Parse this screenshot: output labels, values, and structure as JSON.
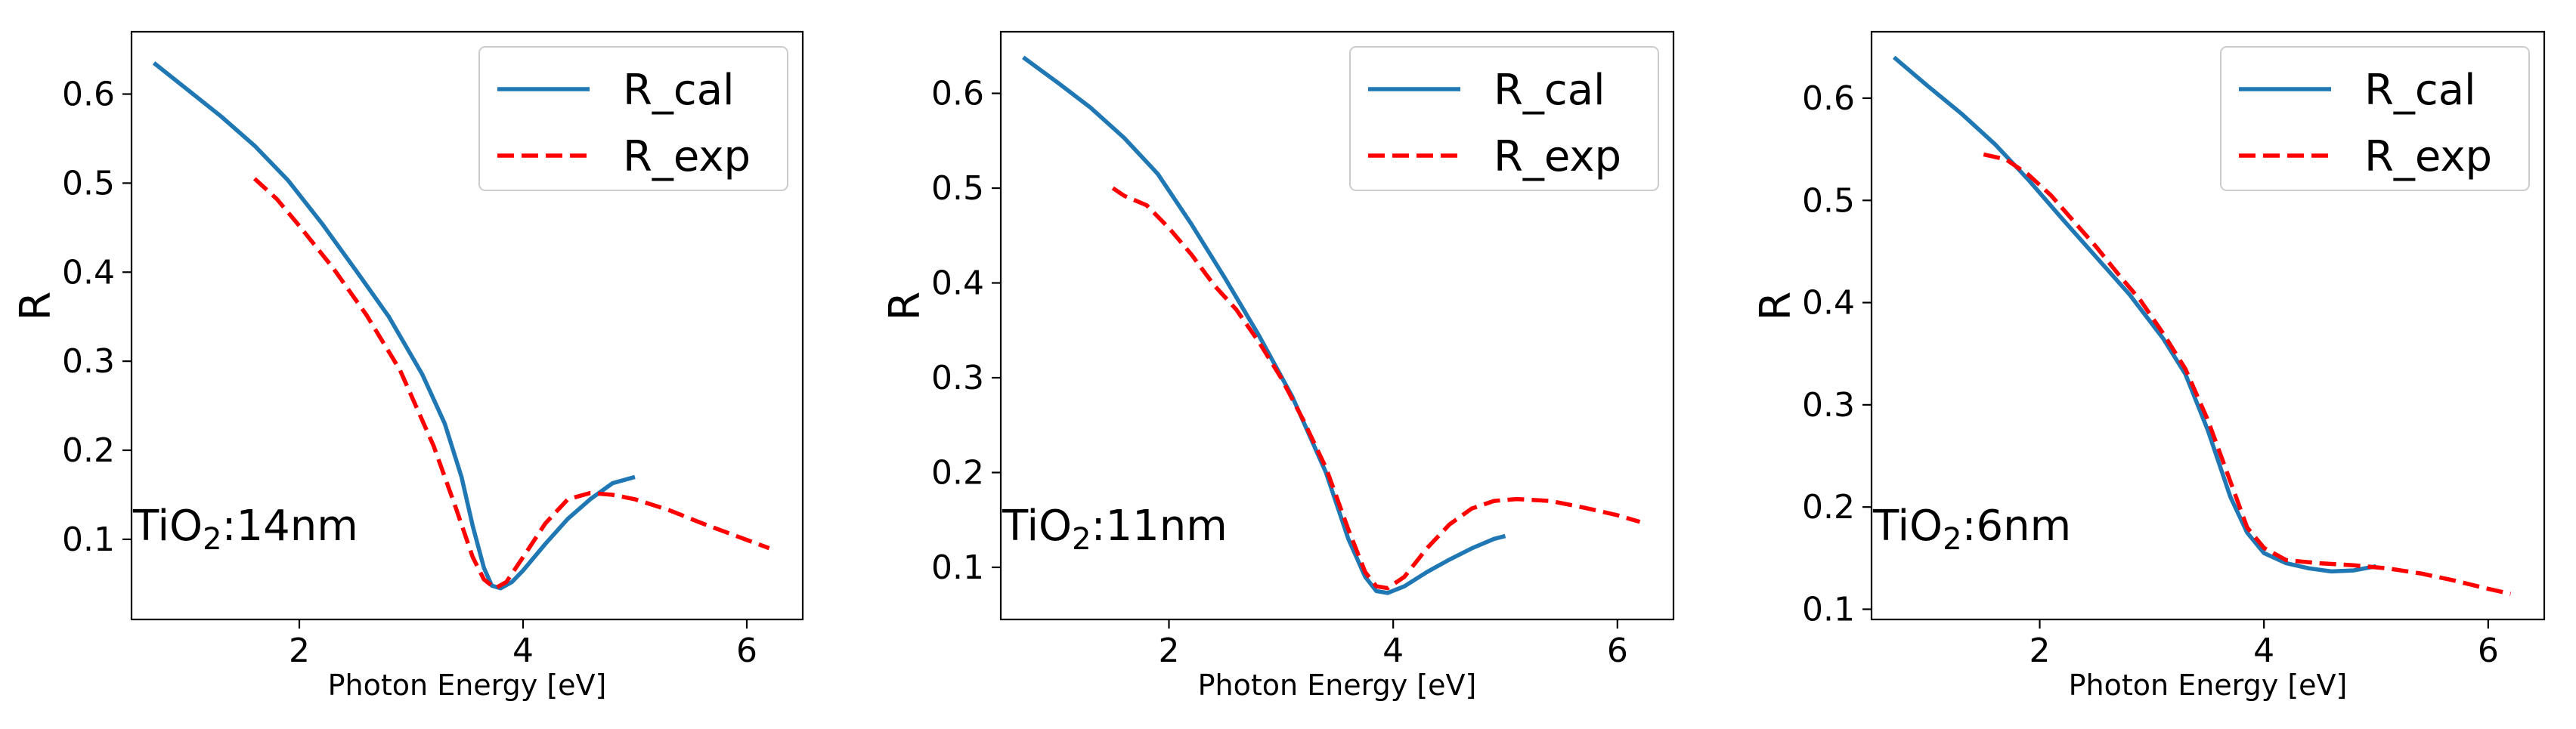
{
  "chart_data": [
    {
      "type": "line",
      "xlabel": "Photon Energy [eV]",
      "ylabel": "R",
      "xlim": [
        0.5,
        6.5
      ],
      "ylim": [
        0.01,
        0.67
      ],
      "xticks": [
        2,
        4,
        6
      ],
      "yticks": [
        0.1,
        0.2,
        0.3,
        0.4,
        0.5,
        0.6
      ],
      "annotation": {
        "main": "TiO",
        "sub": "2",
        "tail": ":14nm"
      },
      "legend": "top-right",
      "series": [
        {
          "name": "R_cal",
          "color": "#1f77b4",
          "style": "solid",
          "points": [
            [
              0.7,
              0.635
            ],
            [
              1.0,
              0.605
            ],
            [
              1.3,
              0.575
            ],
            [
              1.6,
              0.542
            ],
            [
              1.9,
              0.503
            ],
            [
              2.2,
              0.455
            ],
            [
              2.5,
              0.403
            ],
            [
              2.8,
              0.35
            ],
            [
              3.1,
              0.285
            ],
            [
              3.3,
              0.23
            ],
            [
              3.45,
              0.17
            ],
            [
              3.55,
              0.115
            ],
            [
              3.65,
              0.068
            ],
            [
              3.72,
              0.048
            ],
            [
              3.8,
              0.045
            ],
            [
              3.9,
              0.052
            ],
            [
              4.0,
              0.065
            ],
            [
              4.2,
              0.095
            ],
            [
              4.4,
              0.123
            ],
            [
              4.6,
              0.145
            ],
            [
              4.8,
              0.163
            ],
            [
              5.0,
              0.17
            ]
          ]
        },
        {
          "name": "R_exp",
          "color": "#ff0000",
          "style": "dashed",
          "points": [
            [
              1.6,
              0.505
            ],
            [
              1.8,
              0.482
            ],
            [
              2.0,
              0.452
            ],
            [
              2.3,
              0.405
            ],
            [
              2.6,
              0.352
            ],
            [
              2.9,
              0.29
            ],
            [
              3.2,
              0.205
            ],
            [
              3.4,
              0.135
            ],
            [
              3.55,
              0.08
            ],
            [
              3.65,
              0.055
            ],
            [
              3.75,
              0.045
            ],
            [
              3.85,
              0.052
            ],
            [
              4.0,
              0.08
            ],
            [
              4.2,
              0.118
            ],
            [
              4.4,
              0.145
            ],
            [
              4.6,
              0.152
            ],
            [
              4.8,
              0.15
            ],
            [
              5.0,
              0.145
            ],
            [
              5.3,
              0.133
            ],
            [
              5.6,
              0.118
            ],
            [
              5.9,
              0.104
            ],
            [
              6.2,
              0.09
            ]
          ]
        }
      ]
    },
    {
      "type": "line",
      "xlabel": "Photon Energy [eV]",
      "ylabel": "R",
      "xlim": [
        0.5,
        6.5
      ],
      "ylim": [
        0.045,
        0.665
      ],
      "xticks": [
        2,
        4,
        6
      ],
      "yticks": [
        0.1,
        0.2,
        0.3,
        0.4,
        0.5,
        0.6
      ],
      "annotation": {
        "main": "TiO",
        "sub": "2",
        "tail": ":11nm"
      },
      "legend": "top-right",
      "series": [
        {
          "name": "R_cal",
          "color": "#1f77b4",
          "style": "solid",
          "points": [
            [
              0.7,
              0.638
            ],
            [
              1.0,
              0.612
            ],
            [
              1.3,
              0.585
            ],
            [
              1.6,
              0.553
            ],
            [
              1.9,
              0.515
            ],
            [
              2.2,
              0.462
            ],
            [
              2.5,
              0.405
            ],
            [
              2.8,
              0.345
            ],
            [
              3.1,
              0.28
            ],
            [
              3.4,
              0.2
            ],
            [
              3.6,
              0.13
            ],
            [
              3.75,
              0.09
            ],
            [
              3.85,
              0.075
            ],
            [
              3.95,
              0.073
            ],
            [
              4.1,
              0.08
            ],
            [
              4.3,
              0.095
            ],
            [
              4.5,
              0.108
            ],
            [
              4.7,
              0.12
            ],
            [
              4.9,
              0.13
            ],
            [
              5.0,
              0.133
            ]
          ]
        },
        {
          "name": "R_exp",
          "color": "#ff0000",
          "style": "dashed",
          "points": [
            [
              1.5,
              0.5
            ],
            [
              1.6,
              0.492
            ],
            [
              1.8,
              0.482
            ],
            [
              2.0,
              0.458
            ],
            [
              2.2,
              0.43
            ],
            [
              2.4,
              0.398
            ],
            [
              2.6,
              0.372
            ],
            [
              2.8,
              0.338
            ],
            [
              3.0,
              0.3
            ],
            [
              3.2,
              0.255
            ],
            [
              3.4,
              0.205
            ],
            [
              3.6,
              0.14
            ],
            [
              3.75,
              0.095
            ],
            [
              3.85,
              0.08
            ],
            [
              3.95,
              0.078
            ],
            [
              4.1,
              0.09
            ],
            [
              4.3,
              0.12
            ],
            [
              4.5,
              0.145
            ],
            [
              4.7,
              0.162
            ],
            [
              4.9,
              0.17
            ],
            [
              5.1,
              0.172
            ],
            [
              5.4,
              0.17
            ],
            [
              5.7,
              0.163
            ],
            [
              6.0,
              0.155
            ],
            [
              6.2,
              0.148
            ]
          ]
        }
      ]
    },
    {
      "type": "line",
      "xlabel": "Photon Energy [eV]",
      "ylabel": "R",
      "xlim": [
        0.5,
        6.5
      ],
      "ylim": [
        0.09,
        0.665
      ],
      "xticks": [
        2,
        4,
        6
      ],
      "yticks": [
        0.1,
        0.2,
        0.3,
        0.4,
        0.5,
        0.6
      ],
      "annotation": {
        "main": "TiO",
        "sub": "2",
        "tail": ":6nm"
      },
      "legend": "top-right",
      "series": [
        {
          "name": "R_cal",
          "color": "#1f77b4",
          "style": "solid",
          "points": [
            [
              0.7,
              0.64
            ],
            [
              1.0,
              0.612
            ],
            [
              1.3,
              0.585
            ],
            [
              1.6,
              0.555
            ],
            [
              1.9,
              0.52
            ],
            [
              2.2,
              0.482
            ],
            [
              2.5,
              0.445
            ],
            [
              2.8,
              0.408
            ],
            [
              3.1,
              0.365
            ],
            [
              3.3,
              0.33
            ],
            [
              3.5,
              0.275
            ],
            [
              3.7,
              0.21
            ],
            [
              3.85,
              0.175
            ],
            [
              4.0,
              0.155
            ],
            [
              4.2,
              0.145
            ],
            [
              4.4,
              0.14
            ],
            [
              4.6,
              0.137
            ],
            [
              4.8,
              0.138
            ],
            [
              5.0,
              0.142
            ]
          ]
        },
        {
          "name": "R_exp",
          "color": "#ff0000",
          "style": "dashed",
          "points": [
            [
              1.5,
              0.545
            ],
            [
              1.7,
              0.54
            ],
            [
              1.9,
              0.525
            ],
            [
              2.1,
              0.505
            ],
            [
              2.3,
              0.48
            ],
            [
              2.5,
              0.455
            ],
            [
              2.7,
              0.428
            ],
            [
              2.9,
              0.402
            ],
            [
              3.1,
              0.37
            ],
            [
              3.3,
              0.335
            ],
            [
              3.5,
              0.285
            ],
            [
              3.7,
              0.225
            ],
            [
              3.85,
              0.18
            ],
            [
              4.0,
              0.16
            ],
            [
              4.2,
              0.148
            ],
            [
              4.5,
              0.145
            ],
            [
              4.8,
              0.143
            ],
            [
              5.1,
              0.14
            ],
            [
              5.4,
              0.135
            ],
            [
              5.7,
              0.128
            ],
            [
              6.0,
              0.12
            ],
            [
              6.2,
              0.115
            ]
          ]
        }
      ]
    }
  ]
}
